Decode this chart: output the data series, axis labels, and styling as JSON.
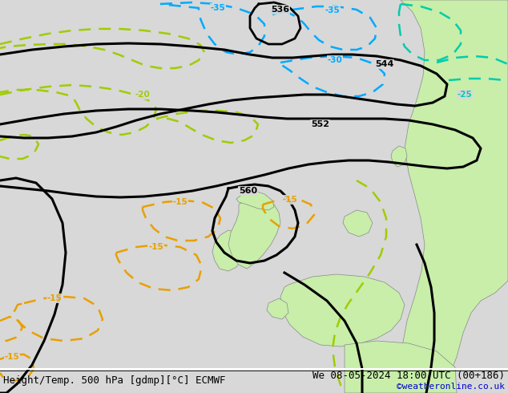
{
  "title_left": "Height/Temp. 500 hPa [gdmp][°C] ECMWF",
  "title_right": "We 08-05-2024 18:00 UTC (00+186)",
  "watermark": "©weatheronline.co.uk",
  "bg_color": "#d8d8d8",
  "land_green_color": "#c8eeaa",
  "land_gray_color": "#bbbbbb",
  "fig_width": 6.34,
  "fig_height": 4.9,
  "dpi": 100,
  "bottom_text_color": "#000000",
  "watermark_color": "#0000cc",
  "font_size_bottom": 9,
  "font_size_watermark": 8
}
